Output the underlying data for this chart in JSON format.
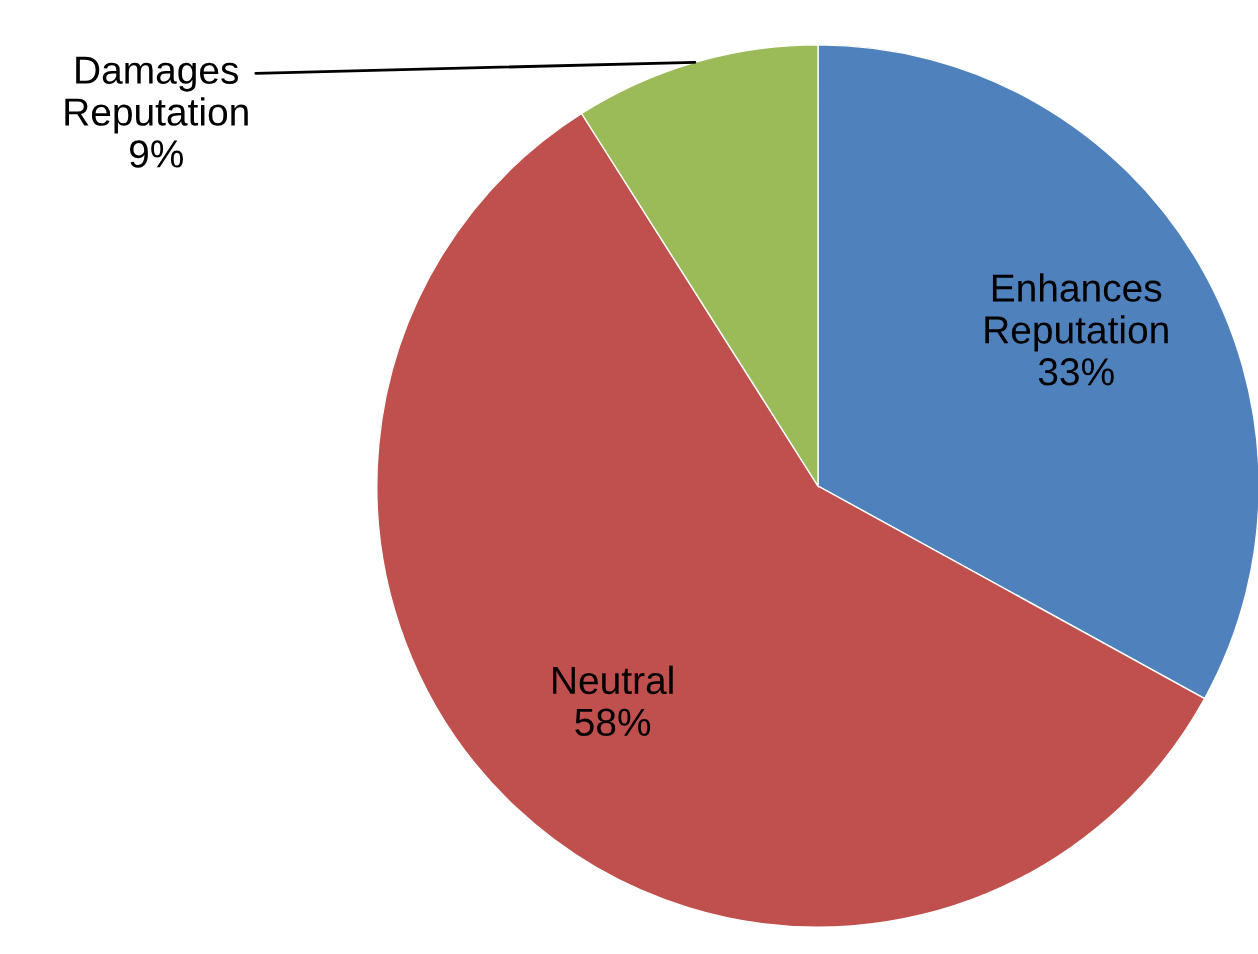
{
  "chart_data": {
    "type": "pie",
    "categories": [
      "Enhances\nReputation",
      "Neutral",
      "Damages\nReputation"
    ],
    "values": [
      33,
      58,
      9
    ],
    "colors": [
      "#4f81bd",
      "#c0504d",
      "#9bbb59"
    ],
    "value_labels": [
      "33%",
      "58%",
      "9%"
    ],
    "legend": false
  }
}
